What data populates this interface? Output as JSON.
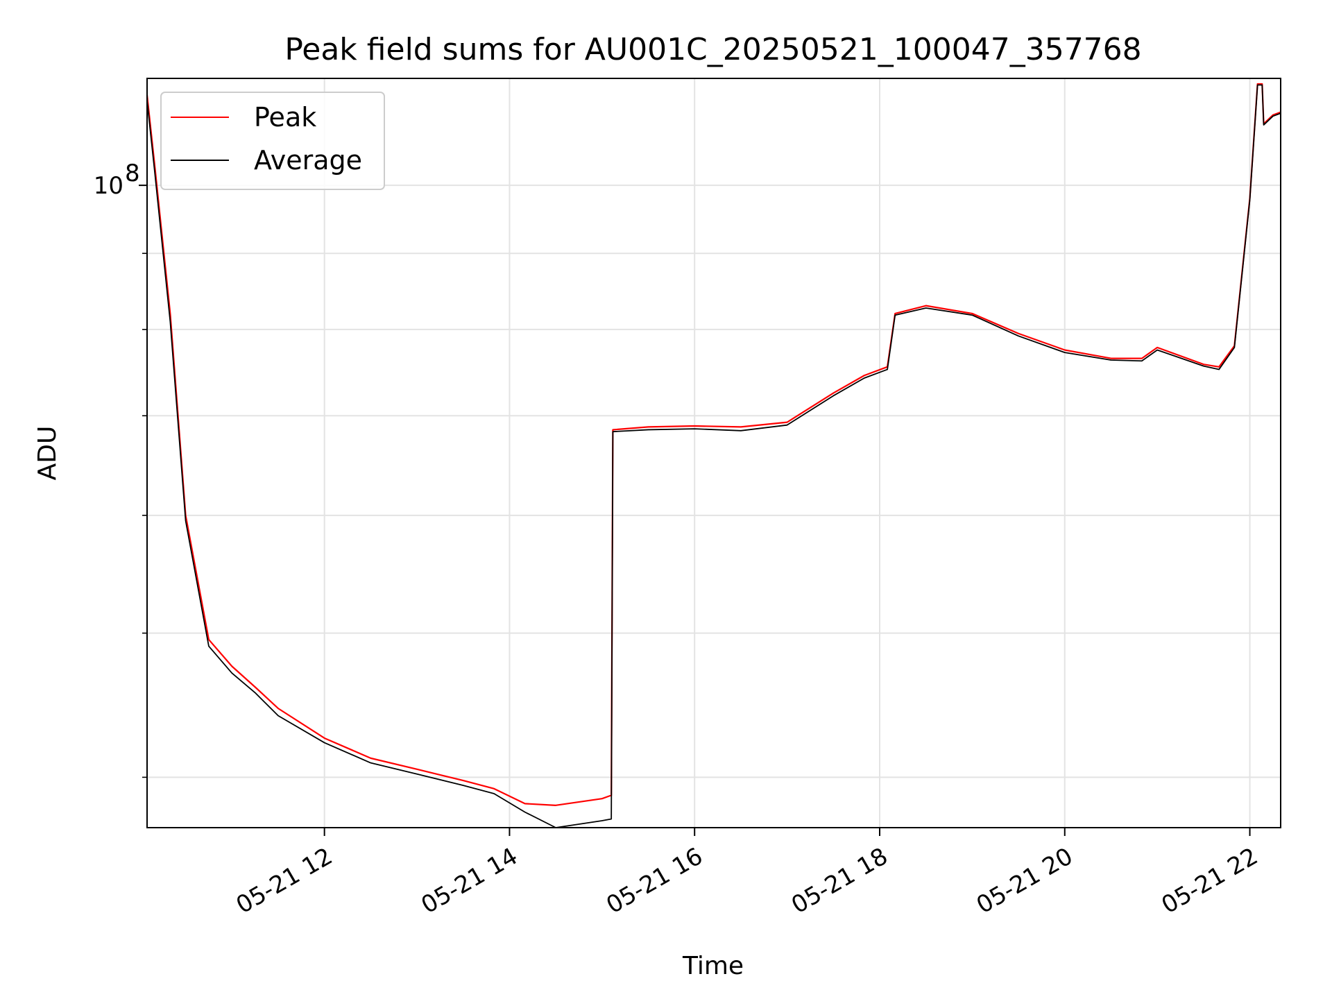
{
  "chart_data": {
    "type": "line",
    "title": "Peak field sums for AU001C_20250521_100047_357768",
    "xlabel": "Time",
    "ylabel": "ADU",
    "y_scale": "log",
    "ylim": [
      37000000,
      118000000
    ],
    "xlim": [
      "2025-05-21 10:05",
      "2025-05-21 22:20"
    ],
    "x_ticks": [
      {
        "value": "2025-05-21 12:00",
        "label": "05-21 12"
      },
      {
        "value": "2025-05-21 14:00",
        "label": "05-21 14"
      },
      {
        "value": "2025-05-21 16:00",
        "label": "05-21 16"
      },
      {
        "value": "2025-05-21 18:00",
        "label": "05-21 18"
      },
      {
        "value": "2025-05-21 20:00",
        "label": "05-21 20"
      },
      {
        "value": "2025-05-21 22:00",
        "label": "05-21 22"
      }
    ],
    "y_major_ticks": [
      {
        "value": 100000000,
        "label_base": "10",
        "label_exp": "8"
      }
    ],
    "y_minor_ticks": [
      40000000,
      50000000,
      60000000,
      70000000,
      80000000,
      90000000
    ],
    "grid": true,
    "legend_position": "top-left",
    "series": [
      {
        "name": "Peak",
        "color": "#ff0000",
        "x": [
          "2025-05-21 10:05",
          "2025-05-21 10:10",
          "2025-05-21 10:20",
          "2025-05-21 10:30",
          "2025-05-21 10:45",
          "2025-05-21 11:00",
          "2025-05-21 11:15",
          "2025-05-21 11:30",
          "2025-05-21 12:00",
          "2025-05-21 12:30",
          "2025-05-21 13:00",
          "2025-05-21 13:30",
          "2025-05-21 13:50",
          "2025-05-21 14:10",
          "2025-05-21 14:30",
          "2025-05-21 15:00",
          "2025-05-21 15:06",
          "2025-05-21 15:07",
          "2025-05-21 15:30",
          "2025-05-21 16:00",
          "2025-05-21 16:30",
          "2025-05-21 17:00",
          "2025-05-21 17:30",
          "2025-05-21 17:50",
          "2025-05-21 18:05",
          "2025-05-21 18:10",
          "2025-05-21 18:30",
          "2025-05-21 19:00",
          "2025-05-21 19:30",
          "2025-05-21 20:00",
          "2025-05-21 20:30",
          "2025-05-21 20:50",
          "2025-05-21 21:00",
          "2025-05-21 21:30",
          "2025-05-21 21:40",
          "2025-05-21 21:50",
          "2025-05-21 22:00",
          "2025-05-21 22:05",
          "2025-05-21 22:08",
          "2025-05-21 22:09",
          "2025-05-21 22:15",
          "2025-05-21 22:20"
        ],
        "values": [
          115000000,
          103000000,
          82000000,
          60000000,
          49500000,
          47500000,
          46000000,
          44500000,
          42500000,
          41200000,
          40500000,
          39800000,
          39300000,
          38400000,
          38300000,
          38700000,
          38900000,
          68500000,
          68800000,
          68900000,
          68800000,
          69300000,
          72500000,
          74500000,
          75500000,
          82000000,
          83000000,
          82000000,
          79500000,
          77500000,
          76500000,
          76500000,
          77800000,
          75800000,
          75500000,
          78000000,
          98000000,
          117000000,
          117000000,
          110000000,
          111500000,
          112000000
        ]
      },
      {
        "name": "Average",
        "color": "#000000",
        "x": [
          "2025-05-21 10:05",
          "2025-05-21 10:10",
          "2025-05-21 10:20",
          "2025-05-21 10:30",
          "2025-05-21 10:45",
          "2025-05-21 11:00",
          "2025-05-21 11:15",
          "2025-05-21 11:30",
          "2025-05-21 12:00",
          "2025-05-21 12:30",
          "2025-05-21 13:00",
          "2025-05-21 13:30",
          "2025-05-21 13:50",
          "2025-05-21 14:10",
          "2025-05-21 14:30",
          "2025-05-21 15:00",
          "2025-05-21 15:06",
          "2025-05-21 15:07",
          "2025-05-21 15:30",
          "2025-05-21 16:00",
          "2025-05-21 16:30",
          "2025-05-21 17:00",
          "2025-05-21 17:30",
          "2025-05-21 17:50",
          "2025-05-21 18:05",
          "2025-05-21 18:10",
          "2025-05-21 18:30",
          "2025-05-21 19:00",
          "2025-05-21 19:30",
          "2025-05-21 20:00",
          "2025-05-21 20:30",
          "2025-05-21 20:50",
          "2025-05-21 21:00",
          "2025-05-21 21:30",
          "2025-05-21 21:40",
          "2025-05-21 21:50",
          "2025-05-21 22:00",
          "2025-05-21 22:05",
          "2025-05-21 22:08",
          "2025-05-21 22:09",
          "2025-05-21 22:15",
          "2025-05-21 22:20"
        ],
        "values": [
          114000000,
          102000000,
          81000000,
          59500000,
          49000000,
          47000000,
          45600000,
          44000000,
          42200000,
          40900000,
          40200000,
          39500000,
          39000000,
          37900000,
          37000000,
          37400000,
          37500000,
          68300000,
          68500000,
          68600000,
          68400000,
          69000000,
          72200000,
          74200000,
          75200000,
          81800000,
          82700000,
          81800000,
          79200000,
          77200000,
          76300000,
          76200000,
          77500000,
          75600000,
          75200000,
          77800000,
          97800000,
          116800000,
          116800000,
          109800000,
          111300000,
          111800000
        ]
      }
    ]
  }
}
